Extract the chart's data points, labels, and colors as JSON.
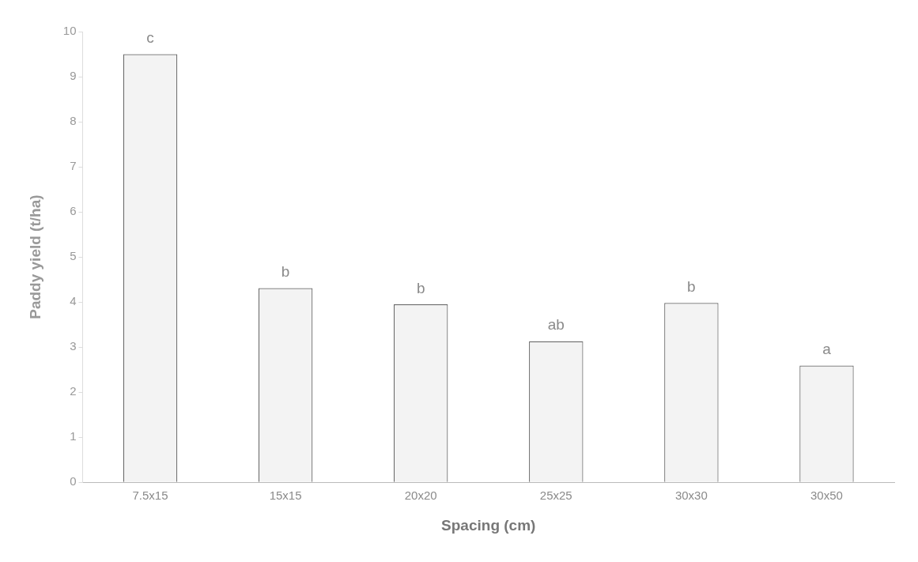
{
  "chart_data": {
    "type": "bar",
    "xlabel": "Spacing (cm)",
    "ylabel": "Paddy yield (t/ha)",
    "categories": [
      "7.5x15",
      "15x15",
      "20x20",
      "25x25",
      "30x30",
      "30x50"
    ],
    "values": [
      9.5,
      4.31,
      3.95,
      3.13,
      3.98,
      2.59
    ],
    "color": "#f3f3f3",
    "ylim": [
      0,
      10
    ],
    "yticks": [
      0,
      1,
      2,
      3,
      4,
      5,
      6,
      7,
      8,
      9,
      10
    ],
    "grid": false,
    "legend": false,
    "annotations": [
      {
        "text": "c",
        "x": "7.5x15",
        "y": 9.5
      },
      {
        "text": "b",
        "x": "15x15",
        "y": 4.31
      },
      {
        "text": "b",
        "x": "20x20",
        "y": 3.95
      },
      {
        "text": "ab",
        "x": "25x25",
        "y": 3.13
      },
      {
        "text": "b",
        "x": "30x30",
        "y": 3.98
      },
      {
        "text": "a",
        "x": "30x50",
        "y": 2.59
      }
    ]
  }
}
